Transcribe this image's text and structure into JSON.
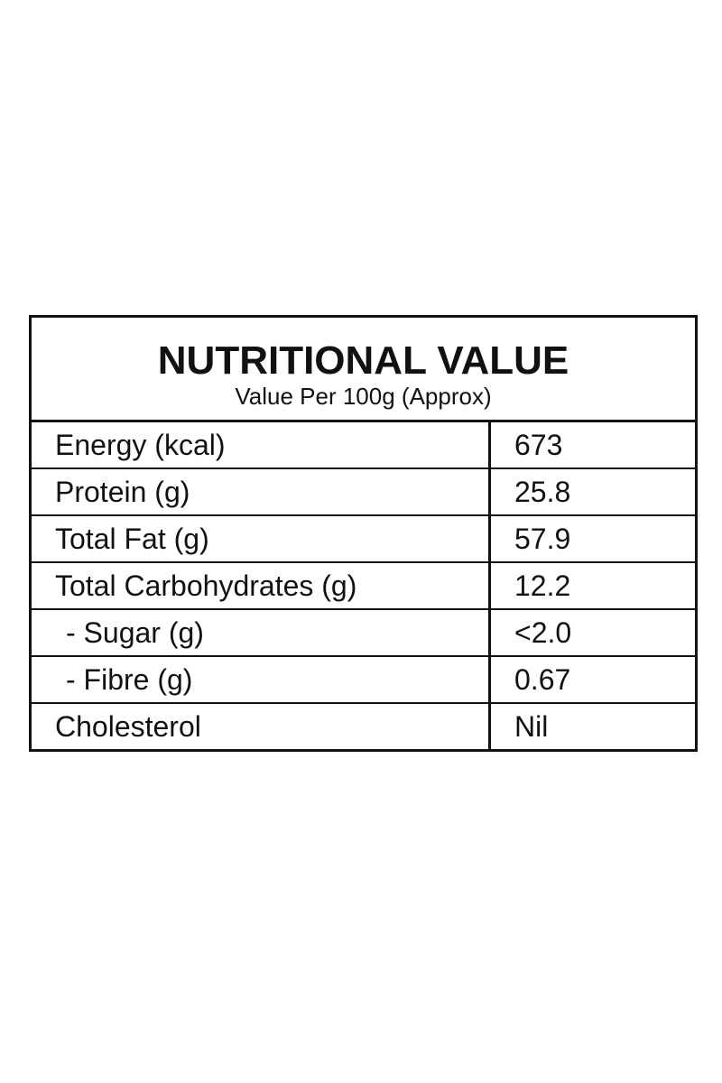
{
  "header": {
    "title": "NUTRITIONAL VALUE",
    "subtitle": "Value Per 100g (Approx)"
  },
  "table": {
    "rows": [
      [
        "Energy (kcal)",
        "673"
      ],
      [
        "Protein (g)",
        "25.8"
      ],
      [
        "Total Fat (g)",
        "57.9"
      ],
      [
        "Total Carbohydrates (g)",
        "12.2"
      ],
      [
        "- Sugar (g)",
        "<2.0"
      ],
      [
        "- Fibre (g)",
        "0.67"
      ],
      [
        "Cholesterol",
        "Nil"
      ]
    ]
  }
}
